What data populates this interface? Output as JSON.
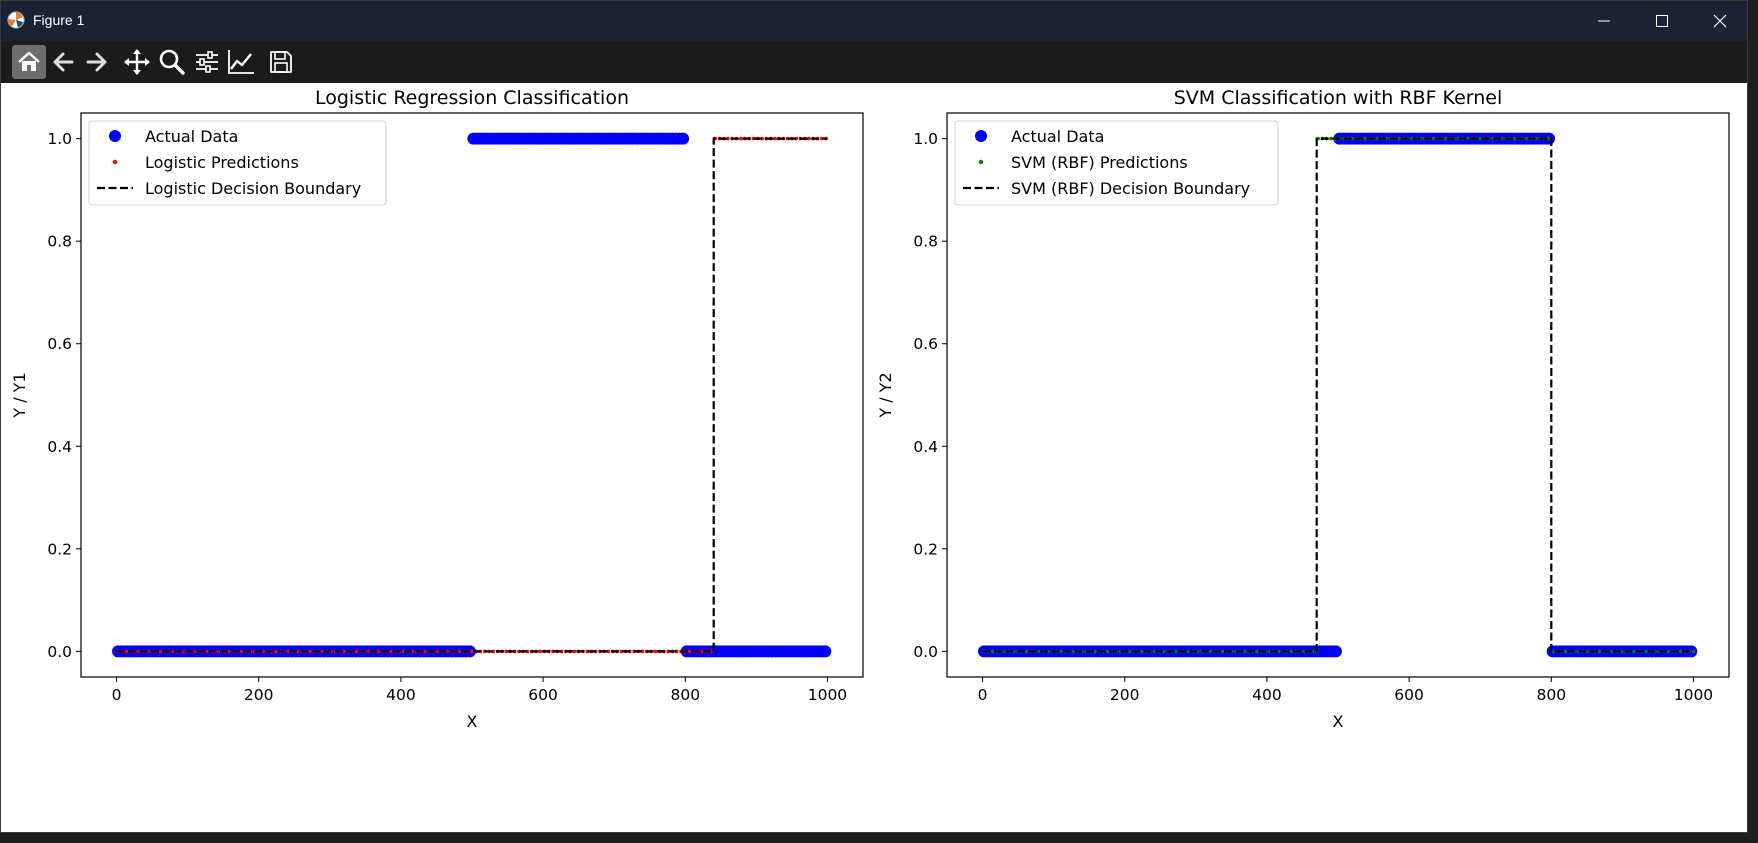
{
  "window": {
    "title": "Figure 1",
    "icons": [
      "matplotlib-icon",
      "minimize-icon",
      "maximize-icon",
      "close-icon"
    ]
  },
  "toolbar": {
    "tools": [
      {
        "name": "home-icon",
        "active": true
      },
      {
        "name": "back-arrow-icon",
        "active": false
      },
      {
        "name": "forward-arrow-icon",
        "active": false
      },
      {
        "name": "pan-icon",
        "active": false
      },
      {
        "name": "zoom-icon",
        "active": false
      },
      {
        "name": "configure-subplots-icon",
        "active": false
      },
      {
        "name": "edit-axis-icon",
        "active": false
      },
      {
        "name": "save-icon",
        "active": false
      }
    ]
  },
  "colors": {
    "titlebar": "#1b2233",
    "toolbar": "#1b1b1b",
    "actual": "#0000ff",
    "logistic_pred": "#ff0000",
    "svm_pred": "#008000",
    "boundary": "#000000"
  },
  "chart_data": [
    {
      "type": "scatter",
      "title": "Logistic Regression Classification",
      "xlabel": "X",
      "ylabel": "Y / Y1",
      "xlim": [
        -50,
        1050
      ],
      "ylim": [
        -0.05,
        1.05
      ],
      "xticks": [
        0,
        200,
        400,
        600,
        800,
        1000
      ],
      "yticks": [
        0.0,
        0.2,
        0.4,
        0.6,
        0.8,
        1.0
      ],
      "legend_position": "upper left",
      "series": [
        {
          "name": "Actual Data",
          "kind": "points",
          "color": "#0000ff",
          "segments": [
            [
              0,
              500,
              0
            ],
            [
              500,
              800,
              1
            ],
            [
              800,
              1000,
              0
            ]
          ]
        },
        {
          "name": "Logistic Predictions",
          "kind": "small-points",
          "color": "#ff0000",
          "segments": [
            [
              0,
              840,
              0
            ],
            [
              840,
              1000,
              1
            ]
          ]
        },
        {
          "name": "Logistic Decision Boundary",
          "kind": "dashed-line",
          "color": "#000000",
          "path": [
            [
              0,
              0
            ],
            [
              840,
              0
            ],
            [
              840,
              1
            ],
            [
              1000,
              1
            ]
          ]
        }
      ]
    },
    {
      "type": "scatter",
      "title": "SVM Classification with RBF Kernel",
      "xlabel": "X",
      "ylabel": "Y / Y2",
      "xlim": [
        -50,
        1050
      ],
      "ylim": [
        -0.05,
        1.05
      ],
      "xticks": [
        0,
        200,
        400,
        600,
        800,
        1000
      ],
      "yticks": [
        0.0,
        0.2,
        0.4,
        0.6,
        0.8,
        1.0
      ],
      "legend_position": "upper left",
      "series": [
        {
          "name": "Actual Data",
          "kind": "points",
          "color": "#0000ff",
          "segments": [
            [
              0,
              500,
              0
            ],
            [
              500,
              800,
              1
            ],
            [
              800,
              1000,
              0
            ]
          ]
        },
        {
          "name": "SVM (RBF) Predictions",
          "kind": "small-points",
          "color": "#008000",
          "segments": [
            [
              0,
              470,
              0
            ],
            [
              470,
              800,
              1
            ],
            [
              800,
              1000,
              0
            ]
          ]
        },
        {
          "name": "SVM (RBF) Decision Boundary",
          "kind": "dashed-line",
          "color": "#000000",
          "path": [
            [
              0,
              0
            ],
            [
              470,
              0
            ],
            [
              470,
              1
            ],
            [
              800,
              1
            ],
            [
              800,
              0
            ],
            [
              1000,
              0
            ]
          ]
        }
      ]
    }
  ]
}
